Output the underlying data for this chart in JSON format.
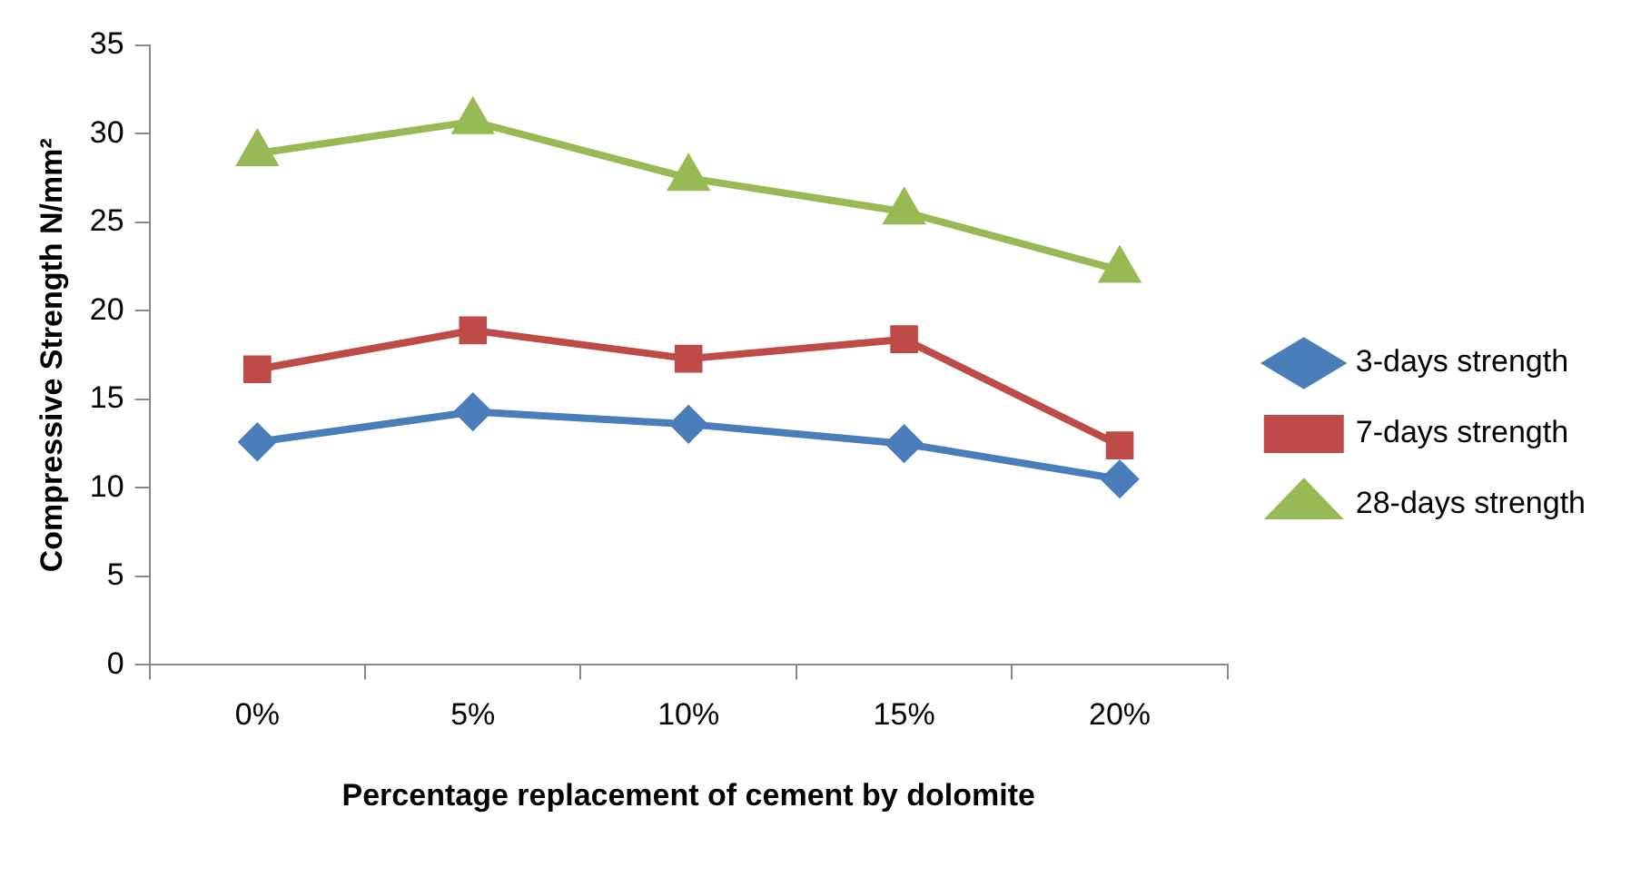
{
  "chart_data": {
    "type": "line",
    "xlabel": "Percentage replacement of cement by dolomite",
    "ylabel": "Compressive Strength N/mm²",
    "categories": [
      "0%",
      "5%",
      "10%",
      "15%",
      "20%"
    ],
    "series": [
      {
        "name": "3-days strength",
        "color": "#4a7ebb",
        "marker": "diamond",
        "values": [
          12.6,
          14.3,
          13.6,
          12.5,
          10.5
        ]
      },
      {
        "name": "7-days strength",
        "color": "#be4b48",
        "marker": "square",
        "values": [
          16.7,
          18.9,
          17.3,
          18.4,
          12.4
        ]
      },
      {
        "name": "28-days strength",
        "color": "#98b954",
        "marker": "triangle",
        "values": [
          28.9,
          30.7,
          27.5,
          25.6,
          22.3
        ]
      }
    ],
    "ylim": [
      0,
      35
    ],
    "yticks": [
      0,
      5,
      10,
      15,
      20,
      25,
      30,
      35
    ],
    "grid": false,
    "legend": "right"
  }
}
